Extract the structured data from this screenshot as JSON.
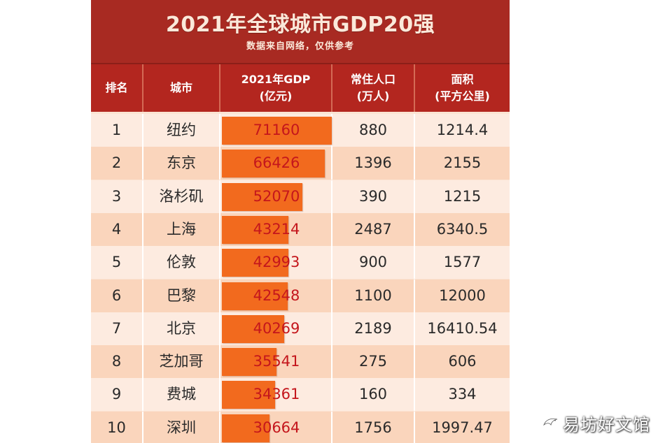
{
  "header": {
    "title": "2021年全球城市GDP20强",
    "subtitle": "数据来自网络，仅供参考"
  },
  "columns": {
    "rank": [
      "排名"
    ],
    "city": [
      "城市"
    ],
    "gdp": [
      "2021年GDP",
      "(亿元)"
    ],
    "population": [
      "常住人口",
      "(万人)"
    ],
    "area": [
      "面积",
      "(平方公里)"
    ]
  },
  "chart_data": {
    "type": "table",
    "title": "2021年全球城市GDP20强",
    "subtitle": "数据来自网络，仅供参考",
    "headers": [
      "排名",
      "城市",
      "2021年GDP (亿元)",
      "常住人口 (万人)",
      "面积 (平方公里)"
    ],
    "gdp_bar_max": 71160,
    "rows": [
      {
        "rank": "1",
        "city": "纽约",
        "gdp": "71160",
        "population": "880",
        "area": "1214.4"
      },
      {
        "rank": "2",
        "city": "东京",
        "gdp": "66426",
        "population": "1396",
        "area": "2155"
      },
      {
        "rank": "3",
        "city": "洛杉矶",
        "gdp": "52070",
        "population": "390",
        "area": "1215"
      },
      {
        "rank": "4",
        "city": "上海",
        "gdp": "43214",
        "population": "2487",
        "area": "6340.5"
      },
      {
        "rank": "5",
        "city": "伦敦",
        "gdp": "42993",
        "population": "900",
        "area": "1577"
      },
      {
        "rank": "6",
        "city": "巴黎",
        "gdp": "42548",
        "population": "1100",
        "area": "12000"
      },
      {
        "rank": "7",
        "city": "北京",
        "gdp": "40269",
        "population": "2189",
        "area": "16410.54"
      },
      {
        "rank": "8",
        "city": "芝加哥",
        "gdp": "35541",
        "population": "275",
        "area": "606"
      },
      {
        "rank": "9",
        "city": "费城",
        "gdp": "34361",
        "population": "160",
        "area": "334"
      },
      {
        "rank": "10",
        "city": "深圳",
        "gdp": "30664",
        "population": "1756",
        "area": "1997.47"
      }
    ]
  },
  "watermark": {
    "text": "易坊好文馆",
    "icon": "bird-logo-icon"
  },
  "colors": {
    "banner": "#a82a22",
    "header_row": "#b3261f",
    "bar": "#f26a1e",
    "gdp_text": "#c4161c"
  }
}
